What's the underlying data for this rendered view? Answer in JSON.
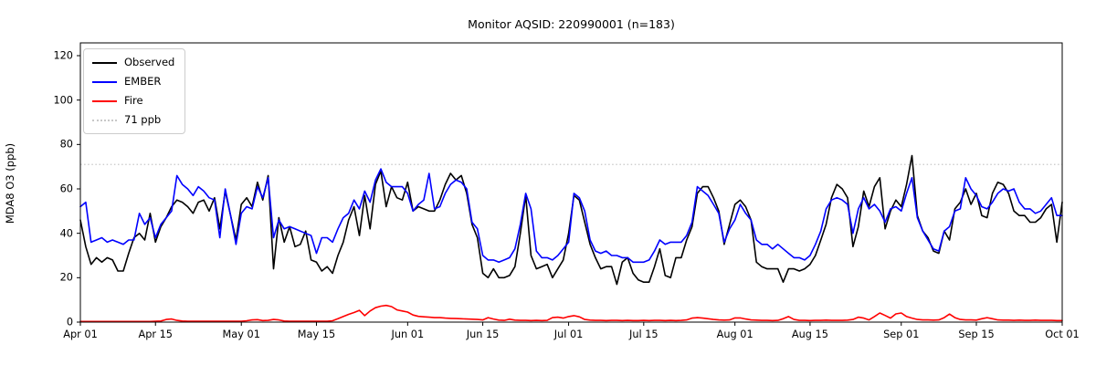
{
  "chart_data": {
    "type": "line",
    "title": "Monitor AQSID: 220990001 (n=183)",
    "ylabel": "MDA8 O3 (ppb)",
    "xlabel": "",
    "ylim": [
      0,
      125.75
    ],
    "yticks": [
      0,
      20,
      40,
      60,
      80,
      100,
      120
    ],
    "x_range_days": [
      0,
      183
    ],
    "x_tick_days": [
      0,
      14,
      30,
      44,
      61,
      75,
      91,
      105,
      122,
      136,
      153,
      167,
      183
    ],
    "x_tick_labels": [
      "Apr 01",
      "Apr 15",
      "May 01",
      "May 15",
      "Jun 01",
      "Jun 15",
      "Jul 01",
      "Jul 15",
      "Aug 01",
      "Aug 15",
      "Sep 01",
      "Sep 15",
      "Oct 01"
    ],
    "grid": false,
    "legend_position": "upper-left",
    "reference_line": {
      "label": "71 ppb",
      "value": 71,
      "color": "#c8c8c8",
      "style": "dotted"
    },
    "legend": [
      {
        "label": "Observed",
        "color": "#000000",
        "style": "solid"
      },
      {
        "label": "EMBER",
        "color": "#0000ff",
        "style": "solid"
      },
      {
        "label": "Fire",
        "color": "#ff0000",
        "style": "solid"
      },
      {
        "label": "71 ppb",
        "color": "#c8c8c8",
        "style": "dotted"
      }
    ],
    "series": [
      {
        "name": "Observed",
        "color": "#000000",
        "values": [
          46,
          34,
          26,
          29,
          27,
          29,
          28,
          23,
          23,
          31,
          38,
          40,
          37,
          49,
          36,
          43,
          47,
          52,
          55,
          54,
          52,
          49,
          54,
          55,
          50,
          56,
          42,
          59,
          48,
          37,
          53,
          56,
          52,
          63,
          55,
          66,
          24,
          47,
          36,
          43,
          34,
          35,
          41,
          28,
          27,
          23,
          25,
          22,
          30,
          36,
          46,
          52,
          39,
          57,
          42,
          62,
          68,
          52,
          61,
          56,
          55,
          63,
          50,
          52,
          51,
          50,
          50,
          55,
          62,
          67,
          64,
          66,
          58,
          44,
          38,
          22,
          20,
          24,
          20,
          20,
          21,
          25,
          40,
          57,
          30,
          24,
          25,
          26,
          20,
          24,
          28,
          40,
          57,
          55,
          45,
          35,
          29,
          24,
          25,
          25,
          17,
          27,
          29,
          22,
          19,
          18,
          18,
          25,
          33,
          21,
          20,
          29,
          29,
          37,
          43,
          58,
          61,
          61,
          56,
          50,
          35,
          44,
          53,
          55,
          52,
          46,
          27,
          25,
          24,
          24,
          24,
          18,
          24,
          24,
          23,
          24,
          26,
          30,
          37,
          44,
          56,
          62,
          60,
          56,
          34,
          43,
          59,
          52,
          61,
          65,
          42,
          50,
          55,
          52,
          62,
          75,
          48,
          41,
          38,
          32,
          31,
          41,
          37,
          51,
          54,
          60,
          53,
          58,
          48,
          47,
          58,
          63,
          62,
          58,
          50,
          48,
          48,
          45,
          45,
          47,
          51,
          53,
          36,
          54
        ]
      },
      {
        "name": "EMBER",
        "color": "#0000ff",
        "values": [
          52,
          54,
          36,
          37,
          38,
          36,
          37,
          36,
          35,
          37,
          37,
          49,
          44,
          47,
          38,
          44,
          47,
          50,
          66,
          62,
          60,
          57,
          61,
          59,
          56,
          55,
          38,
          60,
          48,
          35,
          49,
          52,
          51,
          61,
          56,
          65,
          38,
          46,
          42,
          43,
          42,
          41,
          40,
          39,
          31,
          38,
          38,
          36,
          42,
          47,
          49,
          55,
          51,
          59,
          54,
          64,
          69,
          63,
          61,
          61,
          61,
          58,
          50,
          53,
          55,
          67,
          51,
          52,
          58,
          62,
          64,
          63,
          60,
          45,
          42,
          30,
          28,
          28,
          27,
          28,
          29,
          33,
          44,
          58,
          51,
          32,
          29,
          29,
          28,
          30,
          33,
          36,
          58,
          56,
          50,
          37,
          32,
          31,
          32,
          30,
          30,
          29,
          29,
          27,
          27,
          27,
          28,
          32,
          37,
          35,
          36,
          36,
          36,
          39,
          45,
          61,
          59,
          57,
          53,
          49,
          36,
          42,
          46,
          53,
          49,
          46,
          37,
          35,
          35,
          33,
          35,
          33,
          31,
          29,
          29,
          28,
          30,
          35,
          41,
          51,
          55,
          56,
          55,
          53,
          40,
          51,
          56,
          51,
          53,
          50,
          45,
          51,
          52,
          50,
          58,
          65,
          47,
          41,
          37,
          33,
          32,
          41,
          43,
          50,
          51,
          65,
          60,
          57,
          52,
          51,
          54,
          58,
          60,
          59,
          60,
          54,
          51,
          51,
          49,
          50,
          53,
          56,
          48,
          48
        ]
      },
      {
        "name": "Fire",
        "color": "#ff0000",
        "values": [
          0.3,
          0.3,
          0.3,
          0.3,
          0.3,
          0.3,
          0.3,
          0.3,
          0.3,
          0.3,
          0.3,
          0.3,
          0.3,
          0.3,
          0.4,
          0.5,
          1.2,
          1.4,
          0.8,
          0.5,
          0.4,
          0.4,
          0.4,
          0.4,
          0.4,
          0.4,
          0.4,
          0.4,
          0.4,
          0.4,
          0.4,
          0.6,
          1.0,
          1.1,
          0.7,
          0.8,
          1.2,
          1.0,
          0.5,
          0.4,
          0.4,
          0.4,
          0.4,
          0.4,
          0.4,
          0.4,
          0.4,
          0.6,
          1.5,
          2.5,
          3.5,
          4.3,
          5.3,
          2.9,
          5.0,
          6.5,
          7.2,
          7.5,
          7.0,
          5.5,
          5.0,
          4.5,
          3.2,
          2.6,
          2.4,
          2.2,
          2.0,
          2.0,
          1.8,
          1.7,
          1.6,
          1.5,
          1.4,
          1.3,
          1.2,
          1.0,
          2.0,
          1.4,
          0.9,
          0.8,
          1.3,
          0.9,
          0.8,
          0.8,
          0.7,
          0.8,
          0.7,
          0.8,
          2.0,
          2.2,
          1.8,
          2.5,
          2.9,
          2.4,
          1.2,
          0.9,
          0.8,
          0.8,
          0.7,
          0.8,
          0.8,
          0.7,
          0.8,
          0.7,
          0.7,
          0.8,
          0.7,
          0.8,
          0.8,
          0.7,
          0.8,
          0.7,
          0.8,
          1.0,
          1.8,
          2.0,
          1.8,
          1.5,
          1.2,
          1.0,
          0.9,
          1.0,
          1.9,
          1.9,
          1.4,
          1.0,
          0.9,
          0.8,
          0.8,
          0.7,
          0.8,
          1.5,
          2.5,
          1.2,
          0.8,
          0.8,
          0.7,
          0.8,
          0.8,
          0.9,
          0.8,
          0.8,
          0.8,
          0.9,
          1.2,
          2.2,
          1.8,
          1.0,
          2.5,
          4.1,
          3.0,
          1.8,
          3.7,
          4.1,
          2.5,
          1.8,
          1.2,
          1.0,
          1.0,
          0.9,
          1.0,
          2.0,
          3.6,
          2.0,
          1.2,
          1.0,
          1.0,
          0.9,
          1.5,
          2.0,
          1.5,
          1.0,
          0.9,
          0.9,
          0.8,
          0.9,
          0.8,
          0.8,
          0.9,
          0.8,
          0.8,
          0.8,
          0.7,
          0.7
        ]
      }
    ]
  }
}
